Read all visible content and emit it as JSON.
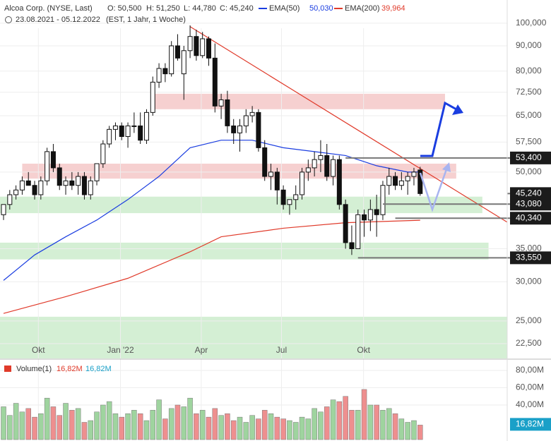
{
  "chart_data": [
    {
      "type": "candlestick",
      "title": "Alcoa Corp. (NYSE, Last)",
      "ohlc_labels": [
        "O: 50,500",
        "H: 51,250",
        "L: 44,780",
        "C: 45,240"
      ],
      "subtitle": "23.08.2021 - 05.12.2022",
      "subtitle_note": "(EST, 1 Jahr, 1 Woche)",
      "log_scale": true,
      "grid": true,
      "up_color": "#ffffff",
      "down_color": "#111111",
      "xlim": [
        -0.57,
        81
      ],
      "xticks": [
        {
          "value": 5.6,
          "label": "Okt"
        },
        {
          "value": 18.8,
          "label": "Jan '22"
        },
        {
          "value": 31.8,
          "label": "Apr"
        },
        {
          "value": 44.7,
          "label": "Jul"
        },
        {
          "value": 57.9,
          "label": "Okt"
        }
      ],
      "ylim": [
        21,
        111.4
      ],
      "yticks": [
        {
          "value": 100,
          "label": "100,000"
        },
        {
          "value": 90,
          "label": "90,000"
        },
        {
          "value": 80,
          "label": "80,000"
        },
        {
          "value": 72.5,
          "label": "72,500"
        },
        {
          "value": 65,
          "label": "65,000"
        },
        {
          "value": 57.5,
          "label": "57,500"
        },
        {
          "value": 50,
          "label": "50,000"
        },
        {
          "value": 35,
          "label": "35,000"
        },
        {
          "value": 30,
          "label": "30,000"
        },
        {
          "value": 25,
          "label": "25,000"
        },
        {
          "value": 22.5,
          "label": "22,500"
        }
      ],
      "open": [
        41,
        43,
        45,
        46,
        48,
        47,
        45,
        48,
        55,
        51,
        47,
        48,
        47,
        49,
        45,
        48,
        52,
        57,
        61,
        62,
        59,
        62,
        62,
        58,
        66,
        76,
        81,
        79,
        90,
        79,
        88,
        94,
        86,
        93,
        85,
        68,
        70,
        62,
        60,
        62,
        65,
        66,
        56,
        49,
        50,
        46,
        43,
        44,
        45,
        50,
        51,
        53,
        54,
        49,
        53,
        43,
        36,
        35,
        41,
        40,
        42,
        41,
        47,
        49,
        47,
        48,
        49,
        50.5
      ],
      "high": [
        43,
        46,
        47,
        49,
        50,
        48,
        49,
        56,
        57,
        52,
        49,
        50,
        50,
        50,
        49,
        52,
        58,
        62,
        63,
        63,
        63,
        66,
        66,
        67,
        78,
        83,
        83,
        92,
        95,
        90,
        99,
        97,
        96,
        94,
        91,
        72,
        73,
        64,
        64,
        67,
        68,
        67,
        58,
        52,
        51,
        47,
        44,
        47,
        51,
        53,
        55,
        58,
        57,
        54,
        54,
        44,
        39,
        42,
        42,
        44,
        45,
        48,
        51,
        50,
        50,
        50,
        51,
        51.25
      ],
      "low": [
        40,
        42,
        44,
        45,
        47,
        44,
        44,
        47,
        50,
        46,
        45,
        46,
        45,
        44,
        44,
        47,
        51,
        56,
        58,
        58,
        56,
        60,
        57,
        57,
        65,
        74,
        76,
        78,
        84,
        70,
        85,
        84,
        85,
        82,
        66,
        64,
        60,
        57,
        55,
        60,
        63,
        55,
        48,
        46,
        43,
        42,
        41,
        42,
        44,
        48,
        49,
        50,
        48,
        47,
        42,
        35,
        34,
        35,
        37,
        38,
        37,
        40,
        45,
        46,
        46,
        45,
        47,
        44.78
      ],
      "close": [
        43,
        45,
        46,
        48,
        47,
        45,
        48,
        55,
        51,
        47,
        48,
        47,
        49,
        45,
        48,
        52,
        57,
        61,
        62,
        59,
        62,
        62,
        58,
        66,
        76,
        81,
        79,
        90,
        85,
        88,
        94,
        86,
        93,
        85,
        68,
        70,
        62,
        60,
        62,
        65,
        66,
        56,
        49,
        50,
        46,
        43,
        44,
        45,
        50,
        51,
        53,
        54,
        49,
        53,
        43,
        36,
        35,
        41,
        40,
        42,
        41,
        47,
        49,
        47,
        48,
        49,
        50,
        45.24
      ],
      "series": [
        {
          "name": "EMA(50)",
          "last_label": "50,030",
          "color": "#1a3de0",
          "x": [
            0,
            5,
            10,
            15,
            20,
            25,
            30,
            35,
            40,
            45,
            50,
            55,
            60,
            65,
            67
          ],
          "values": [
            30.2,
            34,
            37,
            40,
            44,
            49,
            56,
            58,
            58,
            56,
            55,
            54,
            51.5,
            50,
            50.03
          ]
        },
        {
          "name": "EMA(200)",
          "last_label": "39,964",
          "color": "#e03a2a",
          "x": [
            0,
            10,
            20,
            30,
            35,
            45,
            55,
            67
          ],
          "values": [
            25.9,
            28,
            30.5,
            34.5,
            37,
            38.5,
            39.5,
            39.964
          ]
        }
      ],
      "trendline": {
        "color": "#e03a2a",
        "x": [
          30,
          81
        ],
        "values": [
          98.4,
          39.6
        ]
      },
      "zones": [
        {
          "color": "#f5c8c8",
          "from": 67,
          "to": 72,
          "x": [
            24,
            71
          ]
        },
        {
          "color": "#f5c8c8",
          "from": 48.5,
          "to": 52,
          "x": [
            3,
            72.8
          ]
        },
        {
          "color": "#cdeccd",
          "from": 41.3,
          "to": 44.6,
          "x": [
            -0.57,
            77
          ]
        },
        {
          "color": "#cdeccd",
          "from": 33.3,
          "to": 36,
          "x": [
            -0.57,
            78
          ]
        },
        {
          "color": "#cdeccd",
          "from": 21,
          "to": 25.5,
          "x": [
            -0.57,
            81
          ]
        }
      ],
      "levels": [
        {
          "label": "53,400",
          "value": 53.4,
          "from": 55
        },
        {
          "label": "45,240",
          "value": 45.24,
          "from": 81
        },
        {
          "label": "43,080",
          "value": 43.08,
          "from": 61
        },
        {
          "label": "40,340",
          "value": 40.34,
          "from": 63
        },
        {
          "label": "33,550",
          "value": 33.55,
          "from": 57
        }
      ]
    },
    {
      "type": "bar",
      "name": "Volume(1)",
      "legend_labels": [
        "16,82M",
        "16,82M"
      ],
      "last_label": "16,82M",
      "up_color": "#9fd49f",
      "down_color": "#ee8f8f",
      "ylim": [
        0,
        90.6
      ],
      "yticks": [
        {
          "value": 80,
          "label": "80,00M"
        },
        {
          "value": 60,
          "label": "60,00M"
        },
        {
          "value": 40,
          "label": "40,00M"
        }
      ],
      "values": [
        38,
        28,
        42,
        32,
        36,
        26,
        30,
        48,
        38,
        28,
        42,
        34,
        36,
        20,
        22,
        32,
        40,
        44,
        30,
        26,
        30,
        34,
        30,
        22,
        34,
        46,
        24,
        36,
        40,
        38,
        48,
        30,
        34,
        26,
        36,
        28,
        30,
        22,
        26,
        20,
        28,
        24,
        34,
        30,
        26,
        24,
        22,
        20,
        26,
        24,
        36,
        32,
        38,
        46,
        44,
        50,
        34,
        34,
        58,
        40,
        40,
        34,
        36,
        30,
        24,
        20,
        22,
        16.82
      ]
    }
  ]
}
